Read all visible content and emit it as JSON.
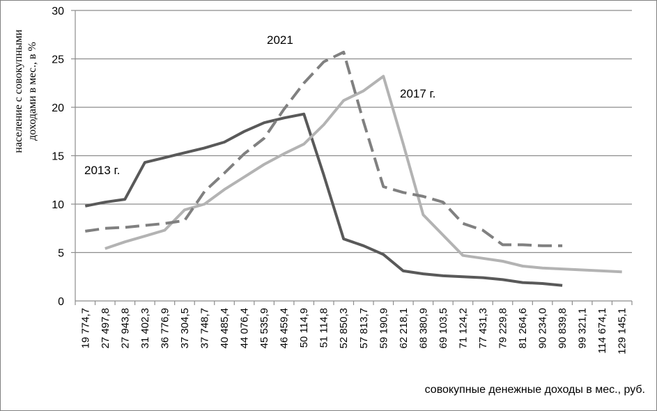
{
  "chart_data": {
    "type": "line",
    "xlabel": "совокупные  денежные доходы в мес., руб.",
    "ylabel_lines": [
      "население с совокупными",
      "доходами в мес.,  в %"
    ],
    "ylim": [
      0,
      30
    ],
    "yticks": [
      0,
      5,
      10,
      15,
      20,
      25,
      30
    ],
    "grid": true,
    "categories": [
      "19 774,7",
      "27 497,8",
      "27 943,8",
      "31 402,3",
      "36 776,9",
      "37 304,5",
      "37 748,7",
      "40 485,4",
      "44 076,4",
      "45 535,9",
      "46 459,4",
      "50 114,9",
      "51 114,8",
      "52 850,3",
      "57 813,7",
      "59 190,9",
      "62 218,1",
      "68 380,9",
      "69 103,5",
      "71 124,2",
      "77 431,3",
      "79 229,8",
      "81 264,6",
      "90 234,0",
      "90 839,8",
      "99 321,1",
      "114 674,1",
      "129 145,1"
    ],
    "series": [
      {
        "name": "2013 г.",
        "color": "#595959",
        "style": "solid",
        "values": [
          9.8,
          10.2,
          10.5,
          14.3,
          14.8,
          15.3,
          15.8,
          16.4,
          17.5,
          18.4,
          18.9,
          19.3,
          13.0,
          6.4,
          5.7,
          4.8,
          3.1,
          2.8,
          2.6,
          2.5,
          2.4,
          2.2,
          1.9,
          1.8,
          1.6,
          null,
          null,
          null
        ]
      },
      {
        "name": "2017 г.",
        "color": "#b3b3b3",
        "style": "solid",
        "values": [
          null,
          5.4,
          6.1,
          6.7,
          7.3,
          9.4,
          10.0,
          11.5,
          12.8,
          14.1,
          15.2,
          16.2,
          18.2,
          20.7,
          21.7,
          23.2,
          16.2,
          8.9,
          6.8,
          4.7,
          4.4,
          4.1,
          3.6,
          3.4,
          3.3,
          3.2,
          3.1,
          3.0
        ]
      },
      {
        "name": "2021",
        "color": "#808080",
        "style": "dashed",
        "values": [
          7.2,
          7.5,
          7.6,
          7.8,
          8.0,
          8.3,
          11.3,
          13.2,
          15.2,
          16.8,
          19.8,
          22.5,
          24.7,
          25.7,
          18.5,
          11.8,
          11.2,
          10.8,
          10.2,
          8.0,
          7.3,
          5.8,
          5.8,
          5.7,
          5.7,
          null,
          null,
          null
        ]
      }
    ]
  }
}
